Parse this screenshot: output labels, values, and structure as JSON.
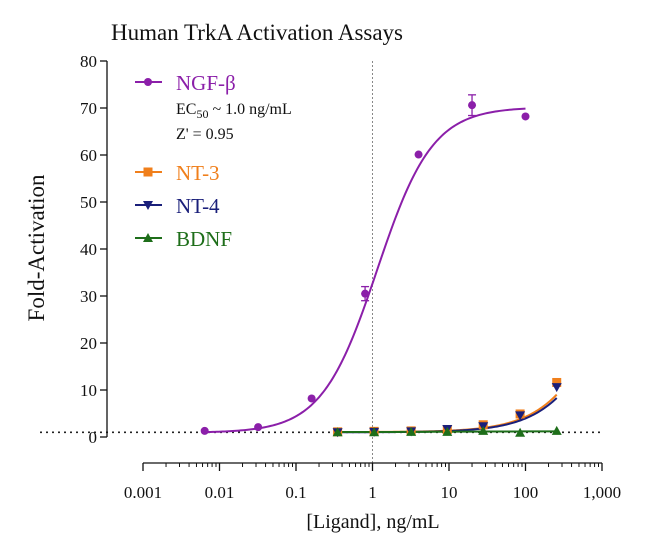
{
  "chart_data": {
    "type": "scatter",
    "title": "Human TrkA Activation Assays",
    "xlabel": "[Ligand], ng/mL",
    "ylabel": "Fold-Activation",
    "xscale": "log",
    "xlim": [
      0.001,
      1000
    ],
    "ylim": [
      0,
      80
    ],
    "x_ticks": [
      {
        "value": 0.001,
        "label": "0.001"
      },
      {
        "value": 0.01,
        "label": "0.01"
      },
      {
        "value": 0.1,
        "label": "0.1"
      },
      {
        "value": 1,
        "label": "1"
      },
      {
        "value": 10,
        "label": "10"
      },
      {
        "value": 100,
        "label": "100"
      },
      {
        "value": 1000,
        "label": "1,000"
      }
    ],
    "y_ticks": [
      {
        "value": 0,
        "label": "0"
      },
      {
        "value": 10,
        "label": "10"
      },
      {
        "value": 20,
        "label": "20"
      },
      {
        "value": 30,
        "label": "30"
      },
      {
        "value": 40,
        "label": "40"
      },
      {
        "value": 50,
        "label": "50"
      },
      {
        "value": 60,
        "label": "60"
      },
      {
        "value": 70,
        "label": "70"
      },
      {
        "value": 80,
        "label": "80"
      }
    ],
    "baseline_y": 1,
    "reference_x": 1,
    "legend_position": "top-left",
    "annotations": {
      "ec50_prefix": "EC",
      "ec50_sub": "50",
      "ec50_suffix": " ~ 1.0 ng/mL",
      "z_prime": "Z' = 0.95"
    },
    "series": [
      {
        "name": "NGF-β",
        "color": "#8b1fa9",
        "marker": "circle",
        "x": [
          0.0064,
          0.032,
          0.16,
          0.8,
          4,
          20,
          100
        ],
        "y": [
          1.3,
          2.1,
          8.2,
          30.5,
          60.1,
          70.6,
          68.2
        ],
        "err": [
          0,
          0,
          0,
          1.5,
          0,
          2.2,
          0
        ],
        "fit": {
          "bottom": 0.9,
          "top": 70.2,
          "ec50": 1.15,
          "hill": 1.2
        }
      },
      {
        "name": "NT-3",
        "color": "#f07f1b",
        "marker": "square",
        "x": [
          0.35,
          1.05,
          3.2,
          9.5,
          28,
          85,
          256
        ],
        "y": [
          1.1,
          1.2,
          1.3,
          1.6,
          2.6,
          4.9,
          11.6
        ],
        "err": [
          0,
          0,
          0,
          0,
          0,
          0,
          0
        ],
        "fit": {
          "bottom": 1.05,
          "top": 60,
          "ec50": 1500,
          "hill": 1.05
        }
      },
      {
        "name": "NT-4",
        "color": "#1a1f7a",
        "marker": "triangle-down",
        "x": [
          0.35,
          1.05,
          3.2,
          9.5,
          28,
          85,
          256
        ],
        "y": [
          1.0,
          1.1,
          1.2,
          1.7,
          2.3,
          4.6,
          10.6
        ],
        "err": [
          0,
          0,
          0,
          0,
          0,
          0,
          0
        ],
        "fit": {
          "bottom": 1.0,
          "top": 60,
          "ec50": 1650,
          "hill": 1.05
        }
      },
      {
        "name": "BDNF",
        "color": "#1e6e1a",
        "marker": "triangle-up",
        "x": [
          0.35,
          1.05,
          3.2,
          9.5,
          28,
          85,
          256
        ],
        "y": [
          1.0,
          1.0,
          1.1,
          1.1,
          1.3,
          0.9,
          1.3
        ],
        "err": [
          0,
          0,
          0,
          0,
          0,
          0,
          0
        ],
        "fit": {
          "bottom": 1.05,
          "top": 1.2,
          "ec50": 10,
          "hill": 1
        }
      }
    ]
  }
}
